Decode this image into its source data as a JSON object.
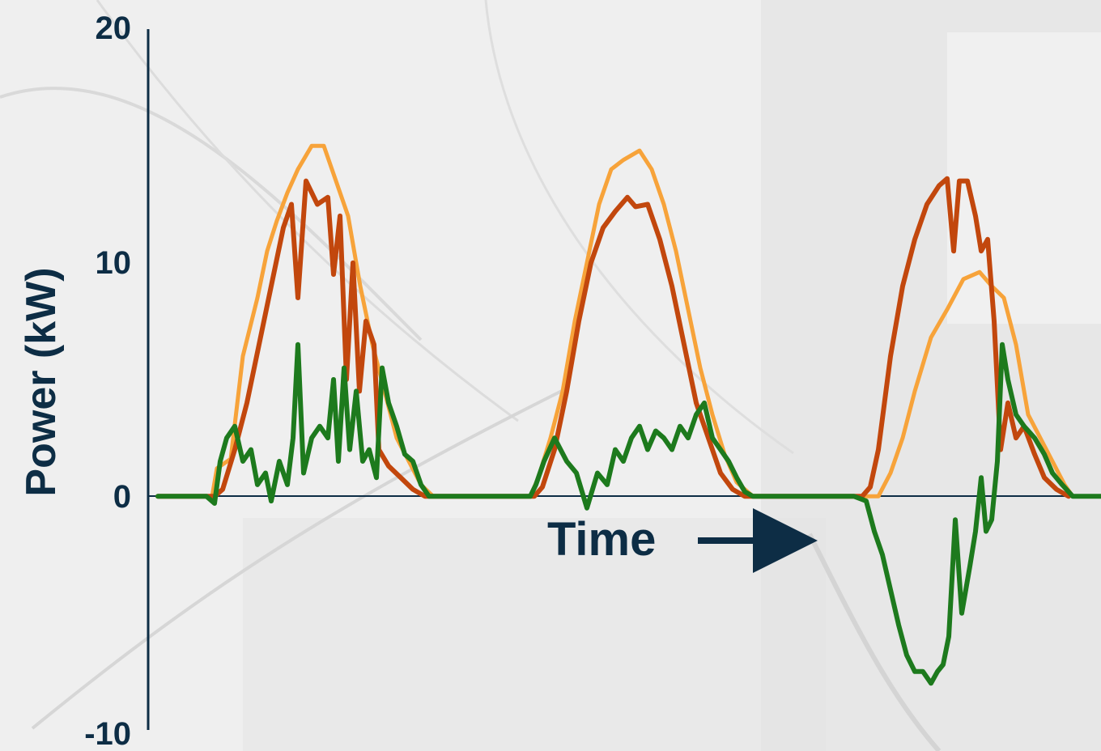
{
  "chart_data": {
    "type": "line",
    "xlabel": "Time",
    "ylabel": "Power (kW)",
    "ylim": [
      -10,
      20
    ],
    "yticks": [
      "20",
      "10",
      "0",
      "-10"
    ],
    "xlim": [
      0,
      1360
    ],
    "grid": false,
    "legend": "none",
    "colors": {
      "axis": "#0d2d45",
      "orange": "#f7a33a",
      "red": "#c2470d",
      "green": "#1d7a1d",
      "background": "#efefef"
    },
    "series": [
      {
        "values": [
          [
            195,
            0
          ],
          [
            262,
            0
          ],
          [
            268,
            1.2
          ],
          [
            285,
            1.6
          ],
          [
            300,
            6.0
          ],
          [
            318,
            8.5
          ],
          [
            330,
            10.5
          ],
          [
            342,
            11.8
          ],
          [
            355,
            13.0
          ],
          [
            368,
            14.0
          ],
          [
            385,
            15.0
          ],
          [
            400,
            15.0
          ],
          [
            415,
            13.5
          ],
          [
            430,
            12.0
          ],
          [
            445,
            9.0
          ],
          [
            460,
            6.5
          ],
          [
            475,
            4.5
          ],
          [
            490,
            2.5
          ],
          [
            505,
            1.5
          ],
          [
            520,
            0.5
          ],
          [
            535,
            0
          ],
          [
            655,
            0
          ],
          [
            665,
            0.8
          ],
          [
            680,
            2.5
          ],
          [
            695,
            4.5
          ],
          [
            710,
            7.5
          ],
          [
            725,
            10.0
          ],
          [
            740,
            12.5
          ],
          [
            755,
            14.0
          ],
          [
            770,
            14.4
          ],
          [
            790,
            14.8
          ],
          [
            805,
            14.0
          ],
          [
            820,
            12.5
          ],
          [
            835,
            10.5
          ],
          [
            850,
            8.0
          ],
          [
            865,
            5.5
          ],
          [
            880,
            3.5
          ],
          [
            895,
            1.8
          ],
          [
            910,
            0.6
          ],
          [
            930,
            0
          ],
          [
            1085,
            0
          ],
          [
            1100,
            1.0
          ],
          [
            1115,
            2.5
          ],
          [
            1130,
            4.5
          ],
          [
            1150,
            6.8
          ],
          [
            1170,
            8.0
          ],
          [
            1190,
            9.3
          ],
          [
            1210,
            9.6
          ],
          [
            1225,
            9.0
          ],
          [
            1240,
            8.5
          ],
          [
            1255,
            6.5
          ],
          [
            1270,
            3.5
          ],
          [
            1285,
            2.5
          ],
          [
            1300,
            1.5
          ],
          [
            1315,
            0.5
          ],
          [
            1325,
            0
          ]
        ]
      },
      {
        "values": [
          [
            195,
            0
          ],
          [
            265,
            0
          ],
          [
            275,
            0.3
          ],
          [
            290,
            2.0
          ],
          [
            305,
            4.0
          ],
          [
            320,
            6.5
          ],
          [
            335,
            9.0
          ],
          [
            350,
            11.5
          ],
          [
            360,
            12.5
          ],
          [
            368,
            8.5
          ],
          [
            378,
            13.5
          ],
          [
            392,
            12.5
          ],
          [
            405,
            12.8
          ],
          [
            412,
            9.5
          ],
          [
            420,
            12.0
          ],
          [
            428,
            5.0
          ],
          [
            436,
            10.0
          ],
          [
            444,
            4.5
          ],
          [
            452,
            7.5
          ],
          [
            462,
            6.5
          ],
          [
            468,
            2.0
          ],
          [
            480,
            1.3
          ],
          [
            495,
            0.8
          ],
          [
            510,
            0.3
          ],
          [
            525,
            0
          ],
          [
            660,
            0
          ],
          [
            670,
            0.4
          ],
          [
            685,
            2.0
          ],
          [
            700,
            4.5
          ],
          [
            715,
            7.5
          ],
          [
            730,
            10.0
          ],
          [
            745,
            11.5
          ],
          [
            760,
            12.2
          ],
          [
            775,
            12.8
          ],
          [
            785,
            12.4
          ],
          [
            800,
            12.5
          ],
          [
            815,
            11.0
          ],
          [
            830,
            9.0
          ],
          [
            845,
            6.5
          ],
          [
            860,
            4.0
          ],
          [
            875,
            2.5
          ],
          [
            890,
            1.0
          ],
          [
            905,
            0.3
          ],
          [
            920,
            0
          ],
          [
            1065,
            0
          ],
          [
            1075,
            0.4
          ],
          [
            1085,
            2.0
          ],
          [
            1100,
            6.0
          ],
          [
            1115,
            9.0
          ],
          [
            1130,
            11.0
          ],
          [
            1145,
            12.5
          ],
          [
            1160,
            13.3
          ],
          [
            1170,
            13.6
          ],
          [
            1178,
            10.5
          ],
          [
            1185,
            13.5
          ],
          [
            1195,
            13.5
          ],
          [
            1205,
            12.0
          ],
          [
            1212,
            10.5
          ],
          [
            1220,
            11.0
          ],
          [
            1228,
            7.5
          ],
          [
            1236,
            2.0
          ],
          [
            1245,
            4.0
          ],
          [
            1255,
            2.5
          ],
          [
            1265,
            3.0
          ],
          [
            1278,
            1.8
          ],
          [
            1290,
            0.8
          ],
          [
            1305,
            0.3
          ],
          [
            1320,
            0
          ]
        ]
      },
      {
        "values": [
          [
            195,
            0
          ],
          [
            255,
            0
          ],
          [
            265,
            -0.3
          ],
          [
            272,
            1.5
          ],
          [
            280,
            2.5
          ],
          [
            290,
            3.0
          ],
          [
            300,
            1.5
          ],
          [
            310,
            2.0
          ],
          [
            318,
            0.5
          ],
          [
            328,
            1.0
          ],
          [
            335,
            -0.2
          ],
          [
            345,
            1.5
          ],
          [
            355,
            0.5
          ],
          [
            362,
            2.5
          ],
          [
            368,
            6.5
          ],
          [
            375,
            1.0
          ],
          [
            385,
            2.5
          ],
          [
            395,
            3.0
          ],
          [
            405,
            2.5
          ],
          [
            412,
            5.0
          ],
          [
            418,
            1.5
          ],
          [
            425,
            5.5
          ],
          [
            432,
            2.0
          ],
          [
            440,
            4.5
          ],
          [
            448,
            1.5
          ],
          [
            456,
            2.0
          ],
          [
            465,
            0.8
          ],
          [
            472,
            5.5
          ],
          [
            480,
            4.0
          ],
          [
            490,
            3.0
          ],
          [
            500,
            1.8
          ],
          [
            510,
            1.5
          ],
          [
            520,
            0.5
          ],
          [
            530,
            0
          ],
          [
            655,
            0
          ],
          [
            662,
            0.5
          ],
          [
            672,
            1.5
          ],
          [
            685,
            2.5
          ],
          [
            700,
            1.5
          ],
          [
            712,
            1.0
          ],
          [
            725,
            -0.5
          ],
          [
            738,
            1.0
          ],
          [
            750,
            0.5
          ],
          [
            760,
            2.0
          ],
          [
            770,
            1.5
          ],
          [
            780,
            2.5
          ],
          [
            790,
            3.0
          ],
          [
            800,
            2.0
          ],
          [
            810,
            2.8
          ],
          [
            820,
            2.5
          ],
          [
            830,
            2.0
          ],
          [
            840,
            3.0
          ],
          [
            850,
            2.5
          ],
          [
            860,
            3.5
          ],
          [
            870,
            4.0
          ],
          [
            880,
            2.5
          ],
          [
            890,
            2.0
          ],
          [
            900,
            1.5
          ],
          [
            910,
            0.8
          ],
          [
            920,
            0.2
          ],
          [
            930,
            0
          ],
          [
            1055,
            0
          ],
          [
            1070,
            -0.2
          ],
          [
            1080,
            -1.5
          ],
          [
            1090,
            -2.5
          ],
          [
            1100,
            -4.0
          ],
          [
            1110,
            -5.5
          ],
          [
            1120,
            -6.8
          ],
          [
            1130,
            -7.5
          ],
          [
            1140,
            -7.5
          ],
          [
            1150,
            -8.0
          ],
          [
            1158,
            -7.5
          ],
          [
            1165,
            -7.2
          ],
          [
            1172,
            -6.0
          ],
          [
            1180,
            -1.0
          ],
          [
            1188,
            -5.0
          ],
          [
            1198,
            -3.0
          ],
          [
            1205,
            -1.5
          ],
          [
            1212,
            0.8
          ],
          [
            1218,
            -1.5
          ],
          [
            1225,
            -1.0
          ],
          [
            1232,
            1.5
          ],
          [
            1238,
            6.5
          ],
          [
            1245,
            5.0
          ],
          [
            1255,
            3.5
          ],
          [
            1265,
            3.0
          ],
          [
            1278,
            2.5
          ],
          [
            1290,
            1.8
          ],
          [
            1300,
            1.0
          ],
          [
            1312,
            0.5
          ],
          [
            1325,
            0
          ],
          [
            1360,
            0
          ]
        ]
      }
    ]
  }
}
